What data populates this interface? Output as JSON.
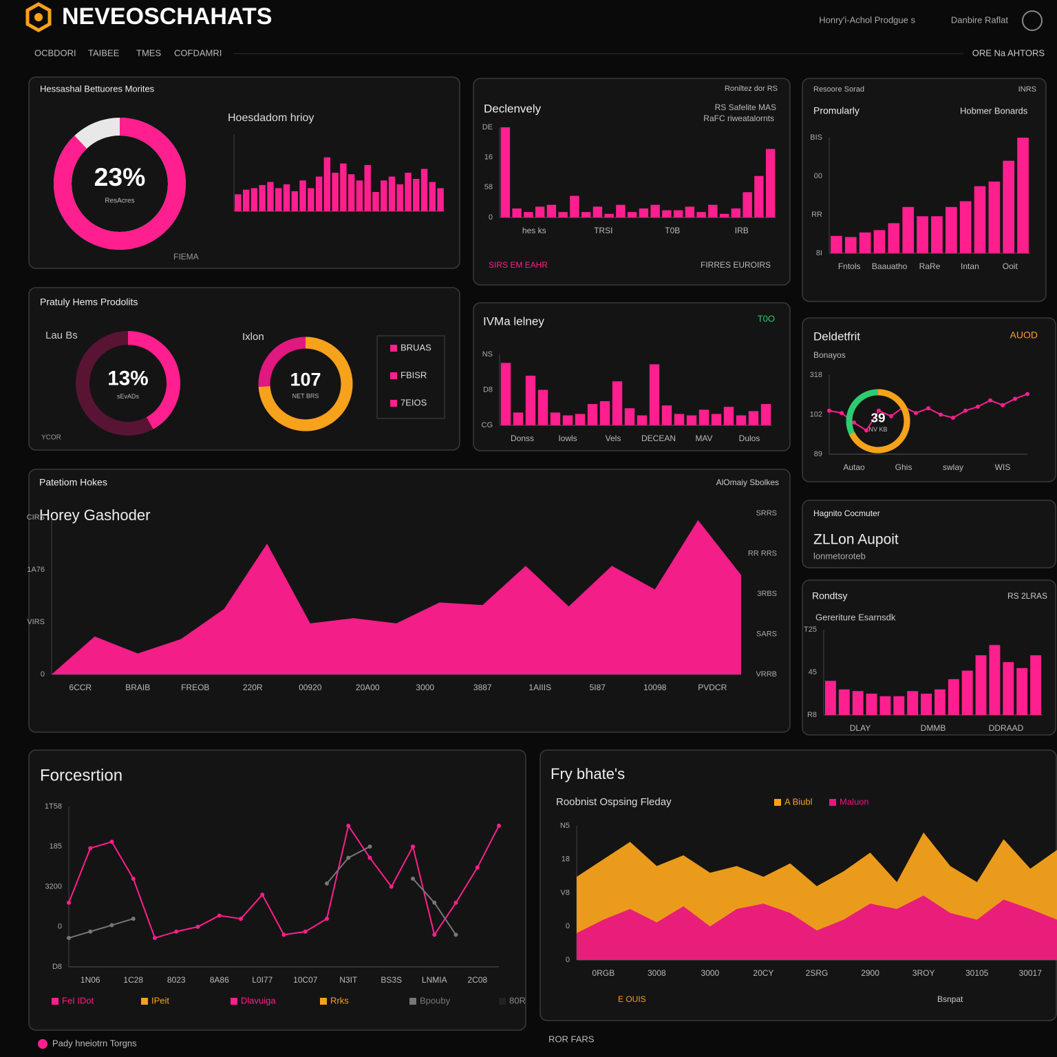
{
  "header": {
    "title": "NEVEOSCHAHATS",
    "links": [
      "Honry'i-Achol Prodgue s",
      "Danbire Raflat"
    ],
    "nav": [
      "OCBDORI",
      "TAIBEE",
      "TMES",
      "COFDAMRI"
    ],
    "nav_right": "ORE Na AHTORS"
  },
  "panels": [
    {
      "title": "Hessashal Bettuores Morites",
      "texts": [
        "Hoesdadom hrioy",
        "FIEMA"
      ],
      "charts": [
        {
          "type": "donut",
          "value": 88,
          "center_text": "23%",
          "label": "ResAcres",
          "color": "#ff1f8e",
          "track": "#e8e8e8"
        },
        {
          "type": "bar",
          "values": [
            22,
            28,
            30,
            34,
            38,
            30,
            35,
            26,
            40,
            30,
            45,
            70,
            50,
            62,
            48,
            40,
            60,
            25,
            40,
            45,
            35,
            50,
            42,
            55,
            38,
            30
          ],
          "color": "#ff1f8e",
          "ylim": [
            0,
            100
          ]
        }
      ]
    },
    {
      "title": "Declenvely",
      "texts": [
        "Roniltez dor RS",
        "RS Safelite MAS",
        "RaFC riweatalornts",
        "SIRS EM EAHR",
        "FIRRES EUROIRS"
      ],
      "charts": [
        {
          "type": "bar",
          "values": [
            100,
            10,
            6,
            12,
            14,
            6,
            24,
            6,
            12,
            4,
            14,
            6,
            10,
            14,
            8,
            8,
            12,
            6,
            14,
            4,
            10,
            28,
            46,
            76
          ],
          "color": "#ff1f8e",
          "ylim": [
            0,
            100
          ],
          "y_labels": [
            "DE",
            "16",
            "58",
            "0"
          ],
          "x_labels": [
            "hes ks",
            "TRSI",
            "T0B",
            "IRB"
          ]
        }
      ]
    },
    {
      "title": "Promularly",
      "texts": [
        "Resoore Sorad",
        "INRS",
        "Hobmer Bonards"
      ],
      "charts": [
        {
          "type": "bar",
          "values": [
            15,
            14,
            18,
            20,
            26,
            40,
            32,
            32,
            40,
            45,
            58,
            62,
            80,
            100
          ],
          "color": "#ff1f8e",
          "ylim": [
            0,
            100
          ],
          "y_labels": [
            "BIS",
            "00",
            "RR",
            "8I"
          ],
          "x_labels": [
            "Fntols",
            "Baauatho",
            "RaRe",
            "Intan",
            "Ooit"
          ]
        }
      ]
    },
    {
      "title": "Pratuly Hems Prodolits",
      "texts": [
        "Lau Bs",
        "Ixlon",
        "YCOR"
      ],
      "charts": [
        {
          "type": "donut",
          "value": 42,
          "center_text": "13%",
          "label": "sEvADs",
          "color": "#ff1f8e",
          "track": "#5a1433"
        },
        {
          "type": "donut",
          "value": 74,
          "center_text": "107",
          "label": "NET BRS",
          "color": "#f7a21b",
          "track": "#e0187f",
          "legend": [
            {
              "label": "BRUAS",
              "color": "#ff1f8e"
            },
            {
              "label": "FBISR",
              "color": "#ff1f8e"
            },
            {
              "label": "7EIOS",
              "color": "#ff1f8e"
            }
          ]
        }
      ]
    },
    {
      "title": "IVMa lelney",
      "texts": [
        "T0O"
      ],
      "charts": [
        {
          "type": "bar",
          "values": [
            88,
            18,
            70,
            50,
            18,
            14,
            16,
            30,
            34,
            62,
            24,
            14,
            86,
            28,
            16,
            14,
            22,
            16,
            26,
            14,
            20,
            30
          ],
          "color": "#ff1f8e",
          "ylim": [
            0,
            100
          ],
          "y_labels": [
            "NS",
            "D8",
            "CG"
          ],
          "x_labels": [
            "Donss",
            "Iowls",
            "Vels",
            "DECEAN",
            "MAV",
            "Dulos"
          ]
        }
      ]
    },
    {
      "title": "Deldetfrit",
      "texts": [
        "AUOD",
        "Bonayos"
      ],
      "charts": [
        {
          "type": "line",
          "series": [
            {
              "color": "#ff1f8e",
              "values": [
                55,
                52,
                40,
                30,
                55,
                48,
                60,
                52,
                58,
                50,
                46,
                55,
                60,
                68,
                62,
                70,
                76
              ]
            }
          ],
          "ylim": [
            0,
            100
          ],
          "y_labels": [
            "318",
            "102",
            "89"
          ],
          "x_labels": [
            "Autao",
            "Ghis",
            "swlay",
            "WIS"
          ]
        },
        {
          "type": "donut",
          "value": 68,
          "center_text": "39",
          "label": "NV KB",
          "color": "#f7a21b",
          "track": "#2ecc71"
        }
      ]
    },
    {
      "title": "Patetiom Hokes",
      "texts": [
        "AlOmaiy Sbolkes",
        "Horey Gashoder"
      ],
      "charts": [
        {
          "type": "area",
          "series": [
            {
              "color": "#ff1f8e",
              "values": [
                0,
                29,
                16,
                27,
                50,
                100,
                39,
                43,
                39,
                55,
                53,
                83,
                52,
                83,
                65,
                118,
                76
              ]
            }
          ],
          "ylim": [
            0,
            120
          ],
          "y_labels": [
            "CIRS",
            "1A76",
            "VIRS",
            "0"
          ],
          "y2_labels": [
            "SRRS",
            "RR RRS",
            "3RBS",
            "SARS",
            "VRRB"
          ],
          "x_labels": [
            "6CCR",
            "BRAIB",
            "FREOB",
            "220R",
            "00920",
            "20A00",
            "3000",
            "3887",
            "1AIIIS",
            "5I87",
            "10098",
            "PVDCR"
          ]
        }
      ]
    },
    {
      "title": "Hagnito Cocmuter",
      "texts": [
        "ZLLon Aupoit",
        "lonmetoroteb"
      ],
      "charts": []
    },
    {
      "title": "Rondtsy",
      "texts": [
        "RS 2LRAS",
        "Gereriture Esarnsdk"
      ],
      "charts": [
        {
          "type": "bar",
          "values": [
            40,
            30,
            28,
            25,
            22,
            22,
            28,
            25,
            30,
            42,
            52,
            70,
            82,
            62,
            55,
            70
          ],
          "color": "#ff1f8e",
          "ylim": [
            0,
            100
          ],
          "y_labels": [
            "T25",
            "45",
            "R8"
          ],
          "x_labels": [
            "DLAY",
            "DMMB",
            "DDRAAD"
          ]
        }
      ]
    },
    {
      "title": "Forcesrtion",
      "texts": [],
      "charts": [
        {
          "type": "line",
          "series": [
            {
              "color": "#ff1f8e",
              "values": [
                40,
                74,
                78,
                55,
                18,
                22,
                25,
                32,
                30,
                45,
                20,
                22,
                30,
                88,
                68,
                50,
                75,
                20,
                40,
                62,
                88
              ]
            },
            {
              "color": "#777777",
              "values": [
                18,
                22,
                26,
                30,
                null,
                null,
                null,
                null,
                null,
                null,
                null,
                null,
                52,
                68,
                75,
                null,
                55,
                40,
                20,
                null,
                null
              ]
            }
          ],
          "ylim": [
            0,
            100
          ],
          "y_labels": [
            "1T58",
            "185",
            "3200",
            "0",
            "D8"
          ],
          "x_labels": [
            "1N06",
            "1C28",
            "8023",
            "8A86",
            "L0I77",
            "10C07",
            "N3IT",
            "BS3S",
            "LNMIA",
            "2C08"
          ],
          "legend": [
            {
              "label": "FeI IDot",
              "color": "#ff1f8e"
            },
            {
              "label": "IPeit",
              "color": "#f7a21b"
            },
            {
              "label": "Dlavuiga",
              "color": "#ff1f8e"
            },
            {
              "label": "Rrks",
              "color": "#f7a21b"
            },
            {
              "label": "Bpouby",
              "color": "#777777"
            },
            {
              "label": "80R",
              "color": "#222222"
            }
          ]
        }
      ]
    },
    {
      "title": "Fry bhate's",
      "texts": [
        "Roobnist Ospsing Fleday",
        "E OUIS",
        "Bsnpat"
      ],
      "charts": [
        {
          "type": "area",
          "series": [
            {
              "name": "A Biubl",
              "color": "#f7a21b",
              "values": [
                62,
                75,
                88,
                70,
                78,
                65,
                70,
                62,
                72,
                55,
                66,
                80,
                58,
                95,
                70,
                58,
                90,
                68,
                82
              ]
            },
            {
              "name": "Maluon",
              "color": "#e8177f",
              "values": [
                20,
                30,
                38,
                28,
                40,
                25,
                38,
                42,
                35,
                22,
                30,
                42,
                38,
                48,
                35,
                30,
                45,
                38,
                30
              ]
            }
          ],
          "ylim": [
            0,
            100
          ],
          "y_labels": [
            "N5",
            "18",
            "V8",
            "0",
            "0"
          ],
          "x_labels": [
            "0RGB",
            "3008",
            "3000",
            "20CY",
            "2SRG",
            "2900",
            "3ROY",
            "30105",
            "30017"
          ]
        }
      ]
    }
  ],
  "footer": [
    "Pady hneiotrn Torgns",
    "ROR FARS"
  ]
}
